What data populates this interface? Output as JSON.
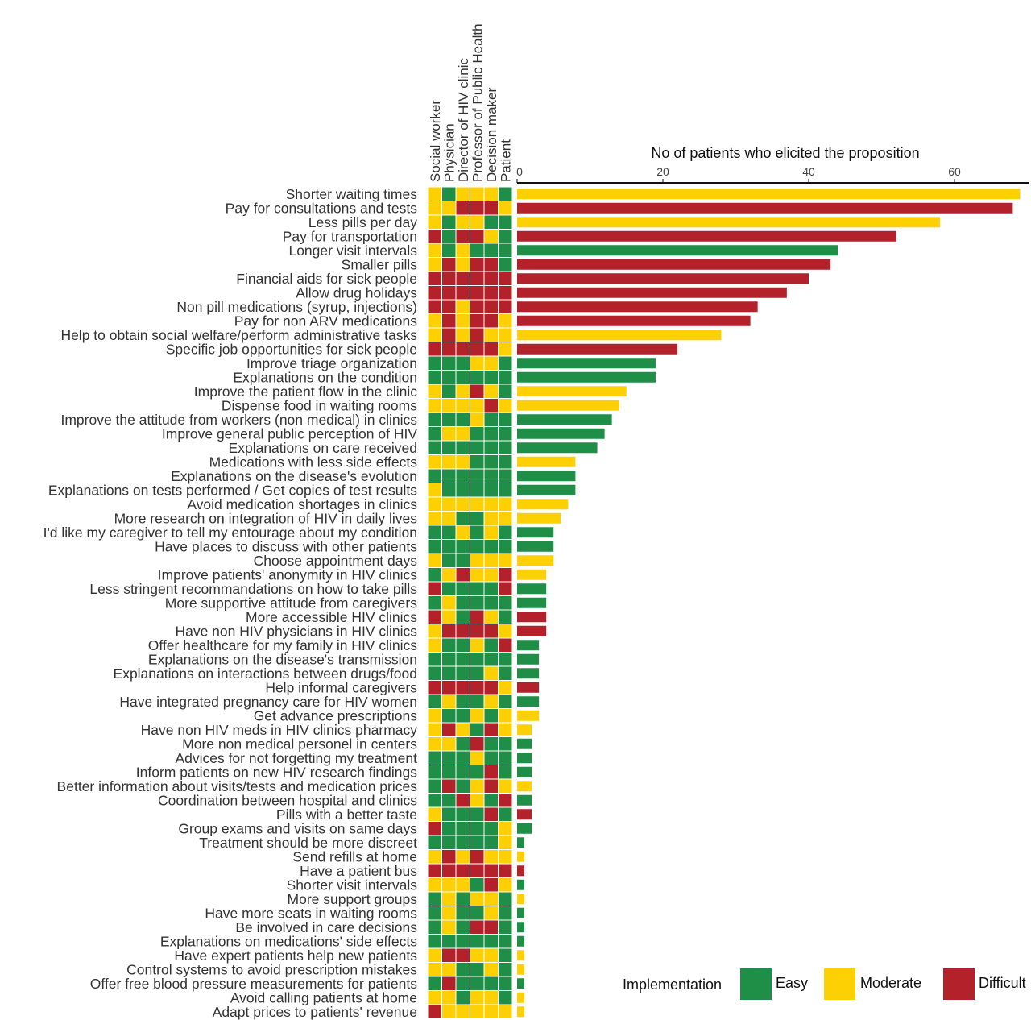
{
  "colors": {
    "E": "#1f8e46",
    "M": "#fdd004",
    "D": "#b3222b"
  },
  "chart_data": {
    "type": "bar",
    "title": "No of patients who elicited the proposition",
    "xlim": [
      0,
      70
    ],
    "xticks": [
      0,
      20,
      40,
      60
    ],
    "grid": false,
    "roles": [
      "Social worker",
      "Physician",
      "Director of HIV clinic",
      "Professor of Public Health",
      "Decision maker",
      "Patient"
    ],
    "legend": {
      "title": "Implementation",
      "items": [
        {
          "key": "E",
          "label": "Easy"
        },
        {
          "key": "M",
          "label": "Moderate"
        },
        {
          "key": "D",
          "label": "Difficult"
        }
      ],
      "placement": "bottom-right"
    },
    "propositions": [
      {
        "label": "Shorter waiting times",
        "value": 69,
        "impl": "M",
        "ratings": "MEMMME"
      },
      {
        "label": "Pay for consultations and tests",
        "value": 68,
        "impl": "D",
        "ratings": "MMDDDM"
      },
      {
        "label": "Less pills per day",
        "value": 58,
        "impl": "M",
        "ratings": "MEMMEE"
      },
      {
        "label": "Pay for transportation",
        "value": 52,
        "impl": "D",
        "ratings": "DEDDME"
      },
      {
        "label": "Longer visit intervals",
        "value": 44,
        "impl": "E",
        "ratings": "MEMEEE"
      },
      {
        "label": "Smaller pills",
        "value": 43,
        "impl": "D",
        "ratings": "MDMDDE"
      },
      {
        "label": "Financial aids for sick people",
        "value": 40,
        "impl": "D",
        "ratings": "DDDDDD"
      },
      {
        "label": "Allow drug holidays",
        "value": 37,
        "impl": "D",
        "ratings": "DDDDDD"
      },
      {
        "label": "Non pill medications (syrup, injections)",
        "value": 33,
        "impl": "D",
        "ratings": "DDMDDD"
      },
      {
        "label": "Pay for non ARV medications",
        "value": 32,
        "impl": "D",
        "ratings": "MDMDDM"
      },
      {
        "label": "Help to obtain social welfare/perform administrative tasks",
        "value": 28,
        "impl": "M",
        "ratings": "MDMDMM"
      },
      {
        "label": "Specific job opportunities for sick people",
        "value": 22,
        "impl": "D",
        "ratings": "DDDDDM"
      },
      {
        "label": "Improve triage organization",
        "value": 19,
        "impl": "E",
        "ratings": "EEEMME"
      },
      {
        "label": "Explanations on the condition",
        "value": 19,
        "impl": "E",
        "ratings": "EEEEEE"
      },
      {
        "label": "Improve the patient flow in the clinic",
        "value": 15,
        "impl": "M",
        "ratings": "MEMDME"
      },
      {
        "label": "Dispense food in waiting rooms",
        "value": 14,
        "impl": "M",
        "ratings": "MMMMDM"
      },
      {
        "label": "Improve the attitude from workers (non medical) in clinics",
        "value": 13,
        "impl": "E",
        "ratings": "EEEMEE"
      },
      {
        "label": "Improve general public perception of HIV",
        "value": 12,
        "impl": "E",
        "ratings": "EMMEEE"
      },
      {
        "label": "Explanations on care received",
        "value": 11,
        "impl": "E",
        "ratings": "EEEEEE"
      },
      {
        "label": "Medications with less side effects",
        "value": 8,
        "impl": "M",
        "ratings": "MMMEEE"
      },
      {
        "label": "Explanations on the disease's evolution",
        "value": 8,
        "impl": "E",
        "ratings": "EEEEEE"
      },
      {
        "label": "Explanations on tests performed / Get copies of test results",
        "value": 8,
        "impl": "E",
        "ratings": "MEEEEE"
      },
      {
        "label": "Avoid medication shortages in clinics",
        "value": 7,
        "impl": "M",
        "ratings": "MMMMMM"
      },
      {
        "label": "More research on integration of HIV in daily lives",
        "value": 6,
        "impl": "M",
        "ratings": "MMEEMM"
      },
      {
        "label": "I'd like my caregiver to tell my entourage about my condition",
        "value": 5,
        "impl": "E",
        "ratings": "EEMEME"
      },
      {
        "label": "Have places to discuss with other patients",
        "value": 5,
        "impl": "E",
        "ratings": "EEEEEE"
      },
      {
        "label": "Choose appointment days",
        "value": 5,
        "impl": "M",
        "ratings": "MEEMMM"
      },
      {
        "label": "Improve patients' anonymity in HIV clinics",
        "value": 4,
        "impl": "M",
        "ratings": "EMDMMD"
      },
      {
        "label": "Less stringent recommandations on how to take pills",
        "value": 4,
        "impl": "E",
        "ratings": "DEEEED"
      },
      {
        "label": "More supportive attitude from caregivers",
        "value": 4,
        "impl": "E",
        "ratings": "EMEEEE"
      },
      {
        "label": "More accessible HIV clinics",
        "value": 4,
        "impl": "D",
        "ratings": "DMEDME"
      },
      {
        "label": "Have non HIV physicians in HIV clinics",
        "value": 4,
        "impl": "D",
        "ratings": "MDDDDM"
      },
      {
        "label": "Offer healthcare for my family in HIV clinics",
        "value": 3,
        "impl": "E",
        "ratings": "MEEMED"
      },
      {
        "label": "Explanations on the disease's transmission",
        "value": 3,
        "impl": "E",
        "ratings": "EEEEEE"
      },
      {
        "label": "Explanations on interactions between drugs/food",
        "value": 3,
        "impl": "E",
        "ratings": "EEEEME"
      },
      {
        "label": "Help informal caregivers",
        "value": 3,
        "impl": "D",
        "ratings": "DDDDDM"
      },
      {
        "label": "Have integrated pregnancy care for HIV women",
        "value": 3,
        "impl": "E",
        "ratings": "EMEEME"
      },
      {
        "label": "Get advance prescriptions",
        "value": 3,
        "impl": "M",
        "ratings": "MEEMEM"
      },
      {
        "label": "Have non HIV meds in HIV clinics pharmacy",
        "value": 2,
        "impl": "M",
        "ratings": "MDMEDM"
      },
      {
        "label": "More non medical personel in centers",
        "value": 2,
        "impl": "E",
        "ratings": "MMEDEE"
      },
      {
        "label": "Advices for not forgetting my treatment",
        "value": 2,
        "impl": "E",
        "ratings": "EEEMEE"
      },
      {
        "label": "Inform patients on new HIV research findings",
        "value": 2,
        "impl": "E",
        "ratings": "EEEEDE"
      },
      {
        "label": "Better information about visits/tests and medication prices",
        "value": 2,
        "impl": "M",
        "ratings": "EDEMDM"
      },
      {
        "label": "Coordination between hospital and clinics",
        "value": 2,
        "impl": "E",
        "ratings": "EEDMED"
      },
      {
        "label": "Pills with a better taste",
        "value": 2,
        "impl": "D",
        "ratings": "MEEEDE"
      },
      {
        "label": "Group exams and visits on same days",
        "value": 2,
        "impl": "E",
        "ratings": "DEEEEM"
      },
      {
        "label": "Treatment should be more discreet",
        "value": 1,
        "impl": "E",
        "ratings": "EEEEEM"
      },
      {
        "label": "Send refills at home",
        "value": 1,
        "impl": "M",
        "ratings": "MDMDMM"
      },
      {
        "label": "Have a patient bus",
        "value": 1,
        "impl": "D",
        "ratings": "DDDDDD"
      },
      {
        "label": "Shorter visit intervals",
        "value": 1,
        "impl": "E",
        "ratings": "MMMEDM"
      },
      {
        "label": "More support groups",
        "value": 1,
        "impl": "M",
        "ratings": "EMEMME"
      },
      {
        "label": "Have more seats in waiting rooms",
        "value": 1,
        "impl": "E",
        "ratings": "EMEEME"
      },
      {
        "label": "Be involved in care decisions",
        "value": 1,
        "impl": "E",
        "ratings": "EMEDDE"
      },
      {
        "label": "Explanations on medications' side effects",
        "value": 1,
        "impl": "E",
        "ratings": "EEEEEE"
      },
      {
        "label": "Have expert patients help new patients",
        "value": 1,
        "impl": "M",
        "ratings": "MDDMME"
      },
      {
        "label": "Control systems to avoid prescription mistakes",
        "value": 1,
        "impl": "M",
        "ratings": "MMEEME"
      },
      {
        "label": "Offer free blood pressure measurements for patients",
        "value": 1,
        "impl": "E",
        "ratings": "EDEEEE"
      },
      {
        "label": "Avoid calling patients at home",
        "value": 1,
        "impl": "M",
        "ratings": "MMEMME"
      },
      {
        "label": "Adapt prices to patients' revenue",
        "value": 1,
        "impl": "M",
        "ratings": "DMMMMM"
      }
    ]
  }
}
